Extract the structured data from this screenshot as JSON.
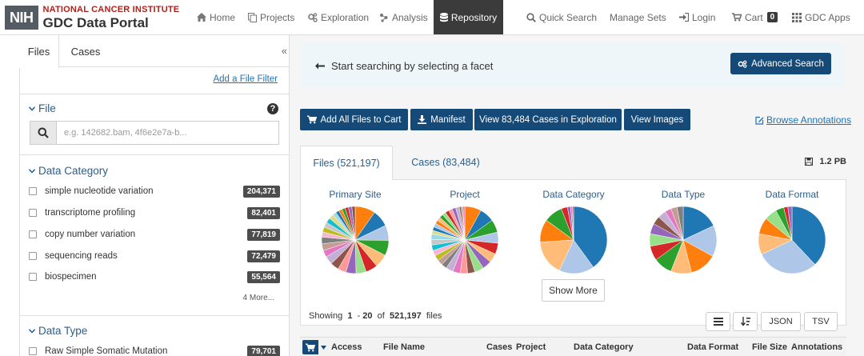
{
  "brand": {
    "nih": "NIH",
    "line1": "NATIONAL CANCER INSTITUTE",
    "line2": "GDC Data Portal",
    "colors": {
      "nih_box": "#555b63",
      "institute_red": "#b0211c",
      "accent_blue": "#154a78",
      "link_blue": "#2172b5"
    }
  },
  "nav": {
    "home": "Home",
    "projects": "Projects",
    "exploration": "Exploration",
    "analysis": "Analysis",
    "repository": "Repository",
    "quick_search": "Quick Search",
    "manage_sets": "Manage Sets",
    "login": "Login",
    "cart": "Cart",
    "cart_count": "0",
    "gdc_apps": "GDC Apps"
  },
  "sidebar": {
    "tabs": {
      "files": "Files",
      "cases": "Cases"
    },
    "collapse": "«",
    "add_filter": "Add a File Filter",
    "file_facet": {
      "title": "File",
      "help": "?",
      "search_placeholder": "e.g. 142682.bam, 4f6e2e7a-b..."
    },
    "data_category": {
      "title": "Data Category",
      "items": [
        {
          "label": "simple nucleotide variation",
          "count": "204,371"
        },
        {
          "label": "transcriptome profiling",
          "count": "82,401"
        },
        {
          "label": "copy number variation",
          "count": "77,819"
        },
        {
          "label": "sequencing reads",
          "count": "72,479"
        },
        {
          "label": "biospecimen",
          "count": "55,564"
        }
      ],
      "more": "4 More..."
    },
    "data_type": {
      "title": "Data Type",
      "items": [
        {
          "label": "Raw Simple Somatic Mutation",
          "count": "79,701"
        }
      ]
    }
  },
  "main": {
    "start_text": "Start searching by selecting a facet",
    "advanced_search": "Advanced Search",
    "actions": {
      "add_all": "Add All Files to Cart",
      "manifest": "Manifest",
      "view_cases": "View 83,484 Cases in Exploration",
      "view_images": "View Images"
    },
    "browse_annotations": "Browse Annotations",
    "tabs": {
      "files": "Files (521,197)",
      "cases": "Cases (83,484)"
    },
    "total_size": "1.2 PB",
    "summary_charts": [
      {
        "title": "Primary Site",
        "slices": 26
      },
      {
        "title": "Project",
        "slices": 33
      },
      {
        "title": "Data Category",
        "slices": 9
      },
      {
        "title": "Data Type",
        "slices": 13
      },
      {
        "title": "Data Format",
        "slices": 8
      }
    ],
    "show_more": "Show More",
    "showing": {
      "prefix": "Showing",
      "from": "1",
      "to": "20",
      "of_word": "of",
      "total": "521,197",
      "suffix": "files"
    },
    "tools": {
      "json": "JSON",
      "tsv": "TSV"
    },
    "table_headers": {
      "access": "Access",
      "file_name": "File Name",
      "cases": "Cases",
      "project": "Project",
      "data_category": "Data Category",
      "data_format": "Data Format",
      "file_size": "File Size",
      "annotations": "Annotations"
    }
  }
}
